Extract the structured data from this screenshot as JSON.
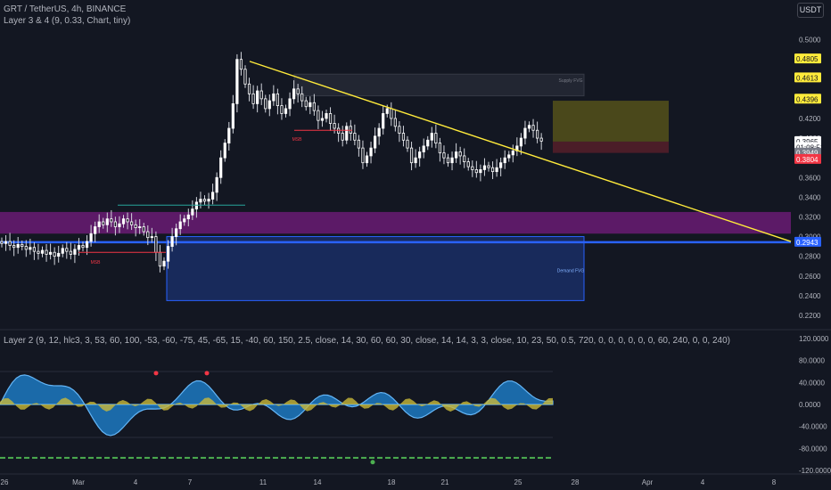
{
  "header": {
    "title": "GRT / TetherUS, 4h, BINANCE",
    "layer34": "Layer 3 & 4 (9, 0.33, Chart, tiny)",
    "layer2": "Layer 2 (9, 12, hlc3, 3, 53, 60, 100, -53, -60, -75, 45, -65, 15, -40, 60, 150, 2.5, close, 14, 30, 60, 60, 30, close, 14, 14, 3, 3, close, 10, 23, 50, 0.5, 720, 0, 0, 0, 0, 0, 0, 60, 240, 0, 0, 240)",
    "currency": "USDT"
  },
  "colors": {
    "background": "#131722",
    "up": "#ffffff",
    "down": "#ffffff",
    "trendline": "#ffeb3b",
    "purple_zone": "#6a1b73",
    "blue_zone": "#1e3a8a",
    "blue_line": "#2962ff",
    "oscillator_blue": "#2196f3",
    "oscillator_yellow": "#c9b93a"
  },
  "chart_data": [
    {
      "type": "candlestick",
      "symbol": "GRT / TetherUS",
      "timeframe": "4h",
      "exchange": "BINANCE",
      "x_ticks": [
        "26",
        "Mar",
        "4",
        "7",
        "11",
        "14",
        "18",
        "21",
        "25",
        "28",
        "Apr",
        "4",
        "8"
      ],
      "y_ticks": [
        "0.5000",
        "0.4800",
        "0.4600",
        "0.4400",
        "0.4200",
        "0.4000",
        "0.3800",
        "0.3600",
        "0.3400",
        "0.3200",
        "0.3000",
        "0.2800",
        "0.2600",
        "0.2400",
        "0.2200"
      ],
      "ylim": [
        0.21,
        0.515
      ],
      "closes": [
        0.293,
        0.295,
        0.291,
        0.289,
        0.292,
        0.29,
        0.287,
        0.289,
        0.285,
        0.283,
        0.286,
        0.282,
        0.284,
        0.28,
        0.283,
        0.288,
        0.285,
        0.282,
        0.287,
        0.291,
        0.289,
        0.295,
        0.303,
        0.31,
        0.315,
        0.312,
        0.318,
        0.315,
        0.31,
        0.313,
        0.318,
        0.315,
        0.312,
        0.309,
        0.31,
        0.305,
        0.299,
        0.3,
        0.284,
        0.27,
        0.275,
        0.29,
        0.3,
        0.308,
        0.315,
        0.318,
        0.322,
        0.328,
        0.335,
        0.338,
        0.336,
        0.338,
        0.345,
        0.36,
        0.38,
        0.395,
        0.41,
        0.435,
        0.48,
        0.47,
        0.455,
        0.445,
        0.435,
        0.448,
        0.44,
        0.43,
        0.438,
        0.445,
        0.433,
        0.425,
        0.43,
        0.44,
        0.45,
        0.445,
        0.438,
        0.432,
        0.436,
        0.428,
        0.418,
        0.42,
        0.425,
        0.415,
        0.41,
        0.405,
        0.398,
        0.412,
        0.405,
        0.398,
        0.39,
        0.375,
        0.382,
        0.39,
        0.402,
        0.41,
        0.425,
        0.43,
        0.42,
        0.412,
        0.405,
        0.398,
        0.39,
        0.375,
        0.38,
        0.386,
        0.392,
        0.398,
        0.405,
        0.395,
        0.385,
        0.38,
        0.375,
        0.38,
        0.386,
        0.382,
        0.376,
        0.371,
        0.368,
        0.365,
        0.368,
        0.372,
        0.37,
        0.366,
        0.37,
        0.375,
        0.38,
        0.383,
        0.387,
        0.392,
        0.4,
        0.41,
        0.413,
        0.408,
        0.4,
        0.397
      ],
      "annotations": {
        "trendline": {
          "from": 0.478,
          "to": 0.295
        },
        "zones": [
          {
            "name": "purple",
            "top": 0.325,
            "bottom": 0.303
          },
          {
            "name": "blue",
            "top": 0.3,
            "bottom": 0.235,
            "label": "Demand FVG"
          },
          {
            "name": "resistance",
            "top": 0.465,
            "bottom": 0.443,
            "label": "Supply FVG"
          },
          {
            "name": "profit",
            "top": 0.438,
            "bottom": 0.3965
          },
          {
            "name": "stop",
            "top": 0.3965,
            "bottom": 0.385
          }
        ],
        "levels": [
          {
            "label": "MSB",
            "price": 0.284
          },
          {
            "label": "MSB",
            "price": 0.408
          }
        ]
      },
      "price_labels": [
        {
          "text": "0.4805",
          "price": 0.4805,
          "bg": "#ffeb3b",
          "fg": "#131722"
        },
        {
          "text": "0.4613",
          "price": 0.4613,
          "bg": "#ffeb3b",
          "fg": "#131722"
        },
        {
          "text": "0.4396",
          "price": 0.4396,
          "bg": "#ffeb3b",
          "fg": "#131722"
        },
        {
          "text": "0.3965",
          "price": 0.3965,
          "bg": "#ffffff",
          "fg": "#131722"
        },
        {
          "text": "01:08:51",
          "price": 0.3905,
          "bg": "#ffffff",
          "fg": "#131722"
        },
        {
          "text": "0.3949",
          "price": 0.3849,
          "bg": "#787b86",
          "fg": "#ffffff"
        },
        {
          "text": "0.3804",
          "price": 0.3784,
          "bg": "#f23645",
          "fg": "#ffffff"
        },
        {
          "text": "0.2943",
          "price": 0.2943,
          "bg": "#2962ff",
          "fg": "#ffffff"
        }
      ]
    },
    {
      "type": "area",
      "name": "Layer 2",
      "y_ticks": [
        "120.0000",
        "80.0000",
        "40.0000",
        "0.0000",
        "-40.0000",
        "-80.0000",
        "-120.0000"
      ],
      "ylim": [
        -120,
        120
      ]
    }
  ]
}
